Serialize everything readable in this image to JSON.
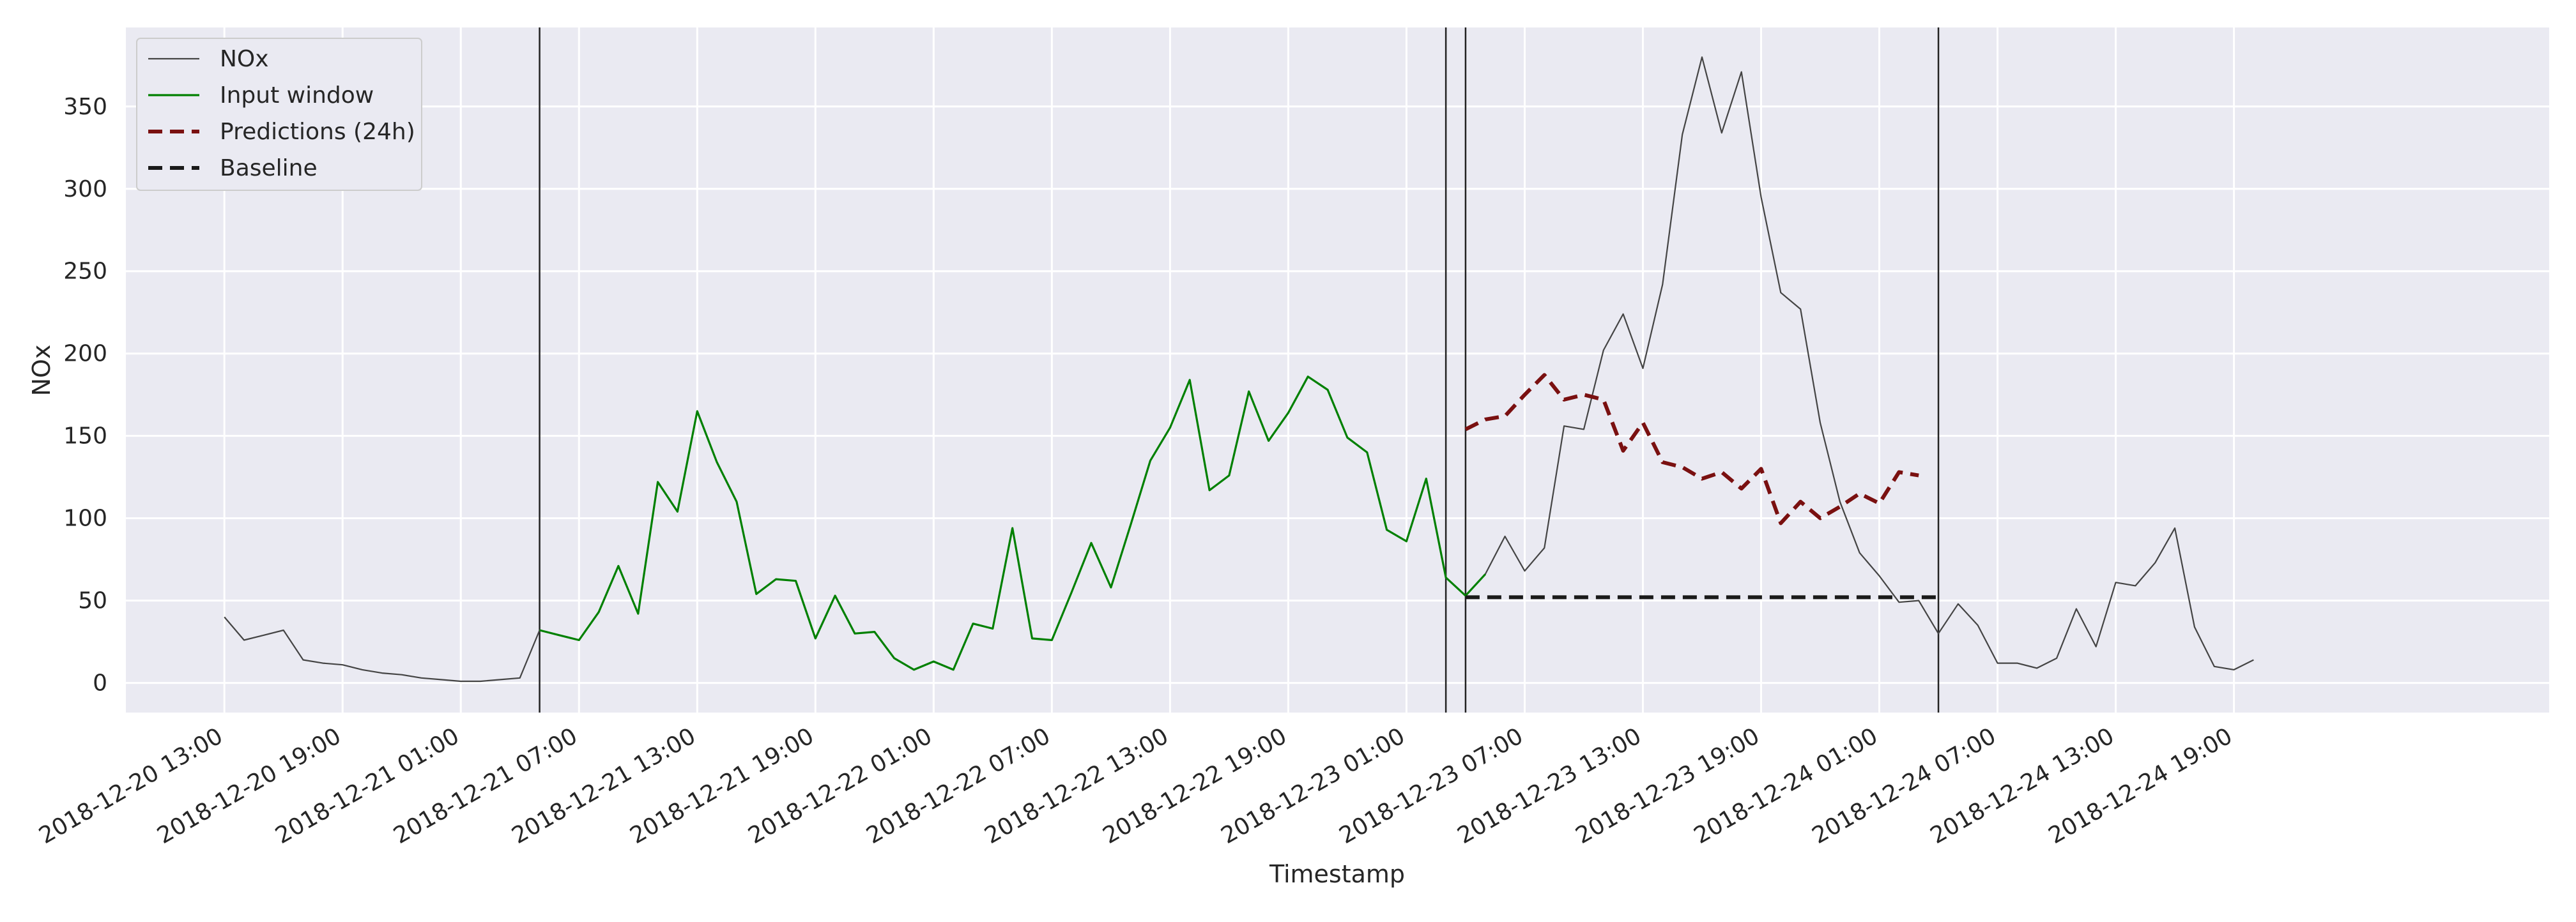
{
  "chart_data": {
    "type": "line",
    "title": "",
    "xlabel": "Timestamp",
    "ylabel": "NOx",
    "x_axis": "datetime (hourly)",
    "x_start": "2018-12-20 13:00",
    "xlim": [
      "2018-12-20 08:00",
      "2018-12-25 11:00"
    ],
    "ylim": [
      -18,
      398
    ],
    "yticks": [
      0,
      50,
      100,
      150,
      200,
      250,
      300,
      350
    ],
    "xticks": [
      "2018-12-20 13:00",
      "2018-12-20 19:00",
      "2018-12-21 01:00",
      "2018-12-21 07:00",
      "2018-12-21 13:00",
      "2018-12-21 19:00",
      "2018-12-22 01:00",
      "2018-12-22 07:00",
      "2018-12-22 13:00",
      "2018-12-22 19:00",
      "2018-12-23 01:00",
      "2018-12-23 07:00",
      "2018-12-23 13:00",
      "2018-12-23 19:00",
      "2018-12-24 01:00",
      "2018-12-24 07:00",
      "2018-12-24 13:00",
      "2018-12-24 19:00"
    ],
    "grid": true,
    "legend_position": "top-left",
    "vertical_lines": [
      "2018-12-21 05:00",
      "2018-12-23 03:00",
      "2018-12-23 04:00",
      "2018-12-24 04:00"
    ],
    "series": [
      {
        "name": "NOx",
        "color": "#444444",
        "style": "solid",
        "start": "2018-12-20 13:00",
        "values": [
          40,
          26,
          29,
          32,
          14,
          12,
          11,
          8,
          6,
          5,
          3,
          2,
          1,
          1,
          2,
          3,
          32,
          29,
          26,
          43,
          71,
          42,
          122,
          104,
          165,
          134,
          110,
          54,
          63,
          62,
          27,
          53,
          30,
          31,
          15,
          8,
          13,
          8,
          36,
          33,
          94,
          27,
          26,
          55,
          85,
          58,
          96,
          135,
          155,
          184,
          117,
          126,
          177,
          147,
          164,
          186,
          178,
          149,
          140,
          93,
          86,
          124,
          64,
          53,
          66,
          89,
          68,
          82,
          156,
          154,
          202,
          224,
          191,
          242,
          333,
          380,
          334,
          371,
          295,
          237,
          227,
          158,
          110,
          79,
          65,
          49,
          50,
          30,
          48,
          35,
          12,
          12,
          9,
          15,
          45,
          22,
          61,
          59,
          73,
          94,
          34,
          10,
          8,
          14
        ]
      },
      {
        "name": "Input window",
        "color": "#008000",
        "style": "solid",
        "start": "2018-12-21 05:00",
        "values": [
          32,
          29,
          26,
          43,
          71,
          42,
          122,
          104,
          165,
          134,
          110,
          54,
          63,
          62,
          27,
          53,
          30,
          31,
          15,
          8,
          13,
          8,
          36,
          33,
          94,
          27,
          26,
          55,
          85,
          58,
          96,
          135,
          155,
          184,
          117,
          126,
          177,
          147,
          164,
          186,
          178,
          149,
          140,
          93,
          86,
          124,
          64,
          53,
          66
        ]
      },
      {
        "name": "Predictions (24h)",
        "color": "#7a1010",
        "style": "dashed",
        "start": "2018-12-23 04:00",
        "values": [
          154,
          160,
          162,
          175,
          187,
          172,
          175,
          172,
          141,
          158,
          134,
          131,
          124,
          128,
          118,
          130,
          97,
          110,
          100,
          107,
          115,
          109,
          128,
          126
        ]
      },
      {
        "name": "Baseline",
        "color": "#1a1a1a",
        "style": "dashed",
        "start": "2018-12-23 04:00",
        "values": [
          52,
          52,
          52,
          52,
          52,
          52,
          52,
          52,
          52,
          52,
          52,
          52,
          52,
          52,
          52,
          52,
          52,
          52,
          52,
          52,
          52,
          52,
          52,
          52,
          52
        ]
      }
    ]
  }
}
